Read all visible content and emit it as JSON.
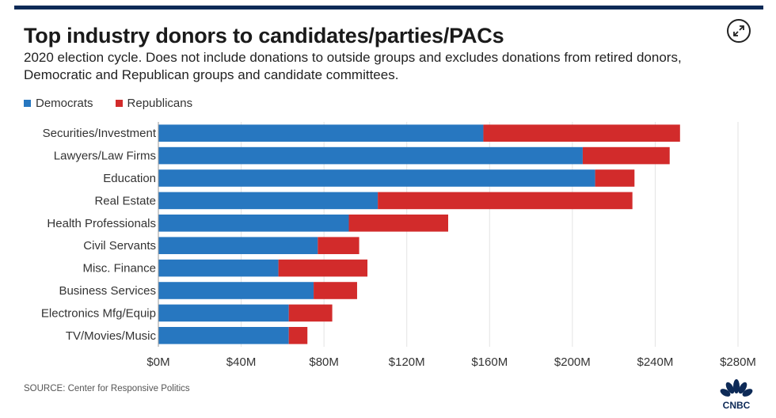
{
  "header": {
    "title": "Top industry donors to candidates/parties/PACs",
    "subtitle": "2020 election cycle. Does not include donations to outside groups and excludes donations from retired donors, Democratic and Republican groups and candidate committees."
  },
  "legend": [
    {
      "label": "Democrats",
      "color": "#2777c0"
    },
    {
      "label": "Republicans",
      "color": "#d22b2b"
    }
  ],
  "footer": {
    "source": "SOURCE: Center for Responsive Politics",
    "logo_text": "CNBC"
  },
  "icons": {
    "expand": "expand-icon",
    "logo": "cnbc-peacock-logo"
  },
  "chart_data": {
    "type": "bar",
    "orientation": "horizontal",
    "stacked": true,
    "categories": [
      "Securities/Investment",
      "Lawyers/Law Firms",
      "Education",
      "Real Estate",
      "Health Professionals",
      "Civil Servants",
      "Misc. Finance",
      "Business Services",
      "Electronics Mfg/Equip",
      "TV/Movies/Music"
    ],
    "series": [
      {
        "name": "Democrats",
        "color": "#2777c0",
        "values": [
          157,
          205,
          211,
          106,
          92,
          77,
          58,
          75,
          63,
          63
        ]
      },
      {
        "name": "Republicans",
        "color": "#d22b2b",
        "values": [
          95,
          42,
          19,
          123,
          48,
          20,
          43,
          21,
          21,
          9
        ]
      }
    ],
    "xlim": [
      0,
      280
    ],
    "xticks": [
      0,
      40,
      80,
      120,
      160,
      200,
      240,
      280
    ],
    "xtick_labels": [
      "$0M",
      "$40M",
      "$80M",
      "$120M",
      "$160M",
      "$200M",
      "$240M",
      "$280M"
    ],
    "grid": true,
    "legend_position": "top-left"
  }
}
